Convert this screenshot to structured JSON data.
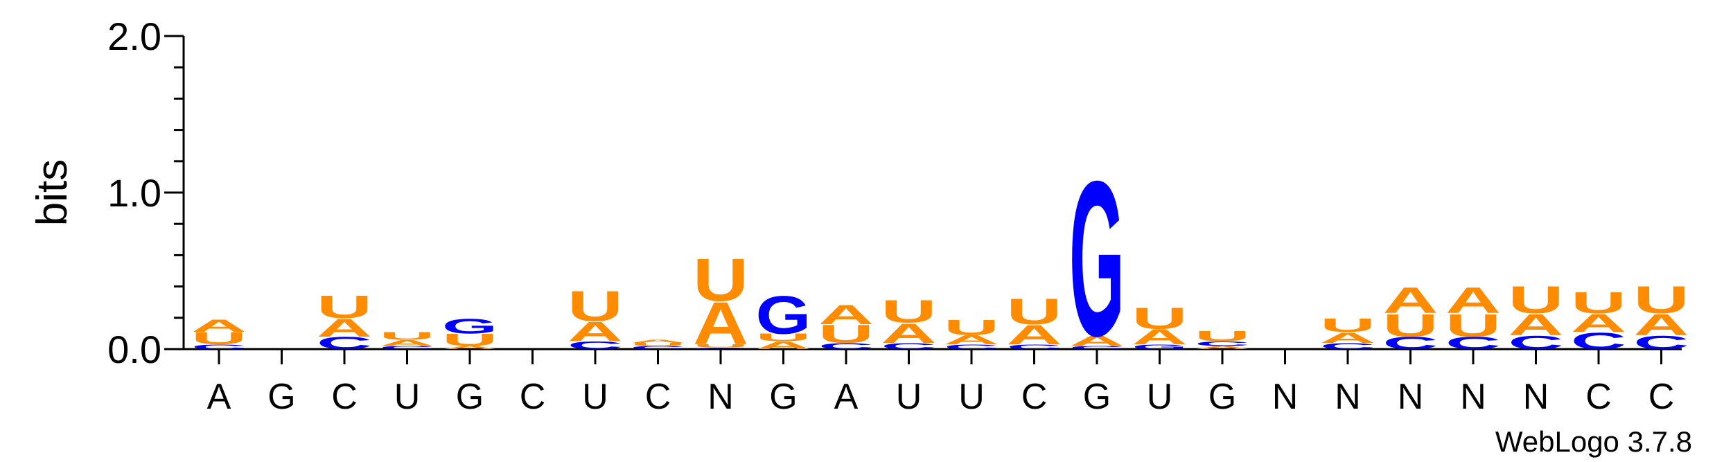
{
  "chart_data": {
    "type": "sequence-logo",
    "ylabel": "bits",
    "ylim": [
      0,
      2.0
    ],
    "yticks": [
      {
        "value": 0.0,
        "label": "0.0"
      },
      {
        "value": 1.0,
        "label": "1.0"
      },
      {
        "value": 2.0,
        "label": "2.0"
      }
    ],
    "categories": [
      "A",
      "G",
      "C",
      "U",
      "G",
      "C",
      "U",
      "C",
      "N",
      "G",
      "A",
      "U",
      "U",
      "C",
      "G",
      "U",
      "G",
      "N",
      "N",
      "N",
      "N",
      "N",
      "C",
      "C"
    ],
    "colors": {
      "A": "#ff8c00",
      "U": "#ff8c00",
      "C": "#0000ff",
      "G": "#0000ff"
    },
    "positions": [
      {
        "index": 1,
        "letters": [
          {
            "base": "C",
            "bits": 0.03
          },
          {
            "base": "U",
            "bits": 0.08
          },
          {
            "base": "A",
            "bits": 0.08
          }
        ]
      },
      {
        "index": 2,
        "letters": []
      },
      {
        "index": 3,
        "letters": [
          {
            "base": "C",
            "bits": 0.08
          },
          {
            "base": "A",
            "bits": 0.12
          },
          {
            "base": "U",
            "bits": 0.15
          }
        ]
      },
      {
        "index": 4,
        "letters": [
          {
            "base": "C",
            "bits": 0.02
          },
          {
            "base": "A",
            "bits": 0.04
          },
          {
            "base": "U",
            "bits": 0.05
          }
        ]
      },
      {
        "index": 5,
        "letters": [
          {
            "base": "A",
            "bits": 0.02
          },
          {
            "base": "U",
            "bits": 0.08
          },
          {
            "base": "G",
            "bits": 0.1
          }
        ]
      },
      {
        "index": 6,
        "letters": []
      },
      {
        "index": 7,
        "letters": [
          {
            "base": "C",
            "bits": 0.05
          },
          {
            "base": "A",
            "bits": 0.13
          },
          {
            "base": "U",
            "bits": 0.2
          }
        ]
      },
      {
        "index": 8,
        "letters": [
          {
            "base": "C",
            "bits": 0.02
          },
          {
            "base": "U",
            "bits": 0.02
          },
          {
            "base": "A",
            "bits": 0.02
          }
        ]
      },
      {
        "index": 9,
        "letters": [
          {
            "base": "C",
            "bits": 0.01
          },
          {
            "base": "U",
            "bits": 0.02
          },
          {
            "base": "A",
            "bits": 0.28
          },
          {
            "base": "U",
            "bits": 0.28
          }
        ]
      },
      {
        "index": 10,
        "letters": [
          {
            "base": "A",
            "bits": 0.05
          },
          {
            "base": "U",
            "bits": 0.05
          },
          {
            "base": "G",
            "bits": 0.25
          }
        ]
      },
      {
        "index": 11,
        "letters": [
          {
            "base": "C",
            "bits": 0.04
          },
          {
            "base": "U",
            "bits": 0.12
          },
          {
            "base": "A",
            "bits": 0.13
          }
        ]
      },
      {
        "index": 12,
        "letters": [
          {
            "base": "C",
            "bits": 0.04
          },
          {
            "base": "A",
            "bits": 0.13
          },
          {
            "base": "U",
            "bits": 0.15
          }
        ]
      },
      {
        "index": 13,
        "letters": [
          {
            "base": "C",
            "bits": 0.03
          },
          {
            "base": "A",
            "bits": 0.06
          },
          {
            "base": "U",
            "bits": 0.1
          }
        ]
      },
      {
        "index": 14,
        "letters": [
          {
            "base": "C",
            "bits": 0.03
          },
          {
            "base": "A",
            "bits": 0.13
          },
          {
            "base": "U",
            "bits": 0.17
          }
        ]
      },
      {
        "index": 15,
        "letters": [
          {
            "base": "C",
            "bits": 0.02
          },
          {
            "base": "A",
            "bits": 0.07
          },
          {
            "base": "G",
            "bits": 1.03
          }
        ]
      },
      {
        "index": 16,
        "letters": [
          {
            "base": "G",
            "bits": 0.03
          },
          {
            "base": "A",
            "bits": 0.1
          },
          {
            "base": "U",
            "bits": 0.14
          }
        ]
      },
      {
        "index": 17,
        "letters": [
          {
            "base": "A",
            "bits": 0.02
          },
          {
            "base": "C",
            "bits": 0.03
          },
          {
            "base": "U",
            "bits": 0.07
          }
        ]
      },
      {
        "index": 18,
        "letters": []
      },
      {
        "index": 19,
        "letters": [
          {
            "base": "C",
            "bits": 0.04
          },
          {
            "base": "A",
            "bits": 0.07
          },
          {
            "base": "U",
            "bits": 0.09
          }
        ]
      },
      {
        "index": 20,
        "letters": [
          {
            "base": "C",
            "bits": 0.08
          },
          {
            "base": "U",
            "bits": 0.15
          },
          {
            "base": "A",
            "bits": 0.17
          }
        ]
      },
      {
        "index": 21,
        "letters": [
          {
            "base": "C",
            "bits": 0.08
          },
          {
            "base": "U",
            "bits": 0.15
          },
          {
            "base": "A",
            "bits": 0.17
          }
        ]
      },
      {
        "index": 22,
        "letters": [
          {
            "base": "C",
            "bits": 0.09
          },
          {
            "base": "A",
            "bits": 0.14
          },
          {
            "base": "U",
            "bits": 0.18
          }
        ]
      },
      {
        "index": 23,
        "letters": [
          {
            "base": "C",
            "bits": 0.11
          },
          {
            "base": "A",
            "bits": 0.12
          },
          {
            "base": "U",
            "bits": 0.14
          }
        ]
      },
      {
        "index": 24,
        "letters": [
          {
            "base": "C",
            "bits": 0.09
          },
          {
            "base": "A",
            "bits": 0.14
          },
          {
            "base": "U",
            "bits": 0.18
          }
        ]
      }
    ],
    "credit": "WebLogo 3.7.8"
  }
}
